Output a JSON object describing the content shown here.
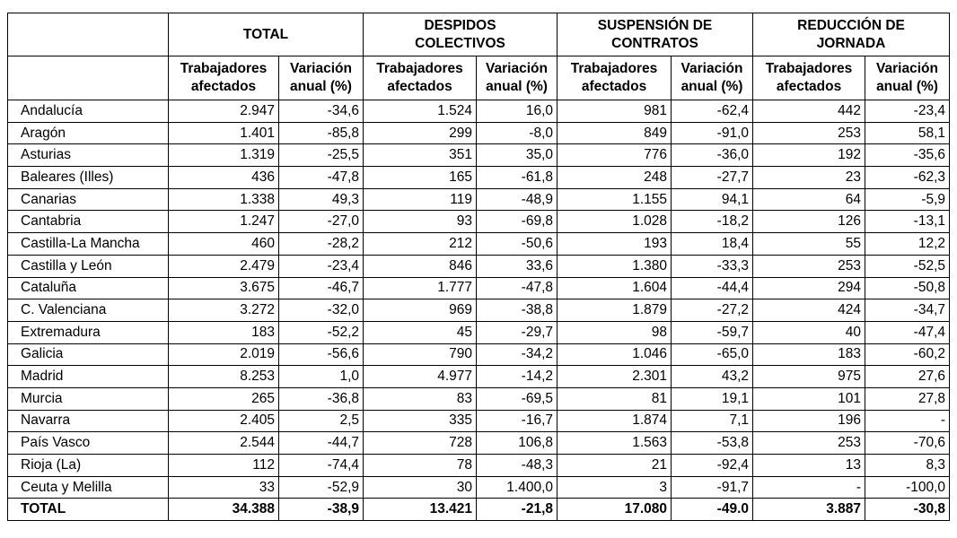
{
  "table": {
    "corner": "",
    "groups": [
      "TOTAL",
      "DESPIDOS COLECTIVOS",
      "SUSPENSIÓN DE CONTRATOS",
      "REDUCCIÓN DE JORNADA"
    ],
    "subheaders": [
      "Trabajadores afectados",
      "Variación anual (%)",
      "Trabajadores afectados",
      "Variación anual (%)",
      "Trabajadores afectados",
      "Variación anual (%)",
      "Trabajadores afectados",
      "Variación anual (%)"
    ],
    "rows": [
      [
        "Andalucía",
        "2.947",
        "-34,6",
        "1.524",
        "16,0",
        "981",
        "-62,4",
        "442",
        "-23,4"
      ],
      [
        "Aragón",
        "1.401",
        "-85,8",
        "299",
        "-8,0",
        "849",
        "-91,0",
        "253",
        "58,1"
      ],
      [
        "Asturias",
        "1.319",
        "-25,5",
        "351",
        "35,0",
        "776",
        "-36,0",
        "192",
        "-35,6"
      ],
      [
        "Baleares (Illes)",
        "436",
        "-47,8",
        "165",
        "-61,8",
        "248",
        "-27,7",
        "23",
        "-62,3"
      ],
      [
        "Canarias",
        "1.338",
        "49,3",
        "119",
        "-48,9",
        "1.155",
        "94,1",
        "64",
        "-5,9"
      ],
      [
        "Cantabria",
        "1.247",
        "-27,0",
        "93",
        "-69,8",
        "1.028",
        "-18,2",
        "126",
        "-13,1"
      ],
      [
        "Castilla-La Mancha",
        "460",
        "-28,2",
        "212",
        "-50,6",
        "193",
        "18,4",
        "55",
        "12,2"
      ],
      [
        "Castilla y León",
        "2.479",
        "-23,4",
        "846",
        "33,6",
        "1.380",
        "-33,3",
        "253",
        "-52,5"
      ],
      [
        "Cataluña",
        "3.675",
        "-46,7",
        "1.777",
        "-47,8",
        "1.604",
        "-44,4",
        "294",
        "-50,8"
      ],
      [
        "C. Valenciana",
        "3.272",
        "-32,0",
        "969",
        "-38,8",
        "1.879",
        "-27,2",
        "424",
        "-34,7"
      ],
      [
        "Extremadura",
        "183",
        "-52,2",
        "45",
        "-29,7",
        "98",
        "-59,7",
        "40",
        "-47,4"
      ],
      [
        "Galicia",
        "2.019",
        "-56,6",
        "790",
        "-34,2",
        "1.046",
        "-65,0",
        "183",
        "-60,2"
      ],
      [
        "Madrid",
        "8.253",
        "1,0",
        "4.977",
        "-14,2",
        "2.301",
        "43,2",
        "975",
        "27,6"
      ],
      [
        "Murcia",
        "265",
        "-36,8",
        "83",
        "-69,5",
        "81",
        "19,1",
        "101",
        "27,8"
      ],
      [
        "Navarra",
        "2.405",
        "2,5",
        "335",
        "-16,7",
        "1.874",
        "7,1",
        "196",
        "-"
      ],
      [
        "País Vasco",
        "2.544",
        "-44,7",
        "728",
        "106,8",
        "1.563",
        "-53,8",
        "253",
        "-70,6"
      ],
      [
        "Rioja (La)",
        "112",
        "-74,4",
        "78",
        "-48,3",
        "21",
        "-92,4",
        "13",
        "8,3"
      ],
      [
        "Ceuta y Melilla",
        "33",
        "-52,9",
        "30",
        "1.400,0",
        "3",
        "-91,7",
        "-",
        "-100,0"
      ]
    ],
    "total_row": [
      "TOTAL",
      "34.388",
      "-38,9",
      "13.421",
      "-21,8",
      "17.080",
      "-49.0",
      "3.887",
      "-30,8"
    ]
  }
}
